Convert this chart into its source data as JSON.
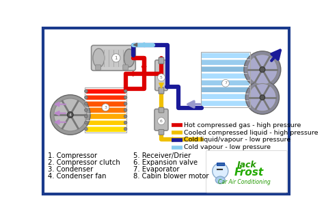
{
  "bg_color": "#ffffff",
  "border_color": "#1a3a8c",
  "border_lw": 3,
  "legend_items": [
    {
      "color": "#dd0000",
      "label": "Hot compressed gas - high pressure"
    },
    {
      "color": "#f0c000",
      "label": "Cooled compressed liquid - high pressure"
    },
    {
      "color": "#1a1a99",
      "label": "Cold liquid/vapour - low pressure"
    },
    {
      "color": "#88ccee",
      "label": "Cold vapour - low pressure"
    }
  ],
  "left_labels": [
    "1. Compressor",
    "2. Compressor clutch",
    "3. Condenser",
    "4. Condenser fan"
  ],
  "right_labels": [
    "5. Receiver/Drier",
    "6. Expansion valve",
    "7. Evaporator",
    "8. Cabin blower motor"
  ],
  "label_fontsize": 7.2,
  "legend_fontsize": 6.8,
  "pipe_lw": 4.5
}
